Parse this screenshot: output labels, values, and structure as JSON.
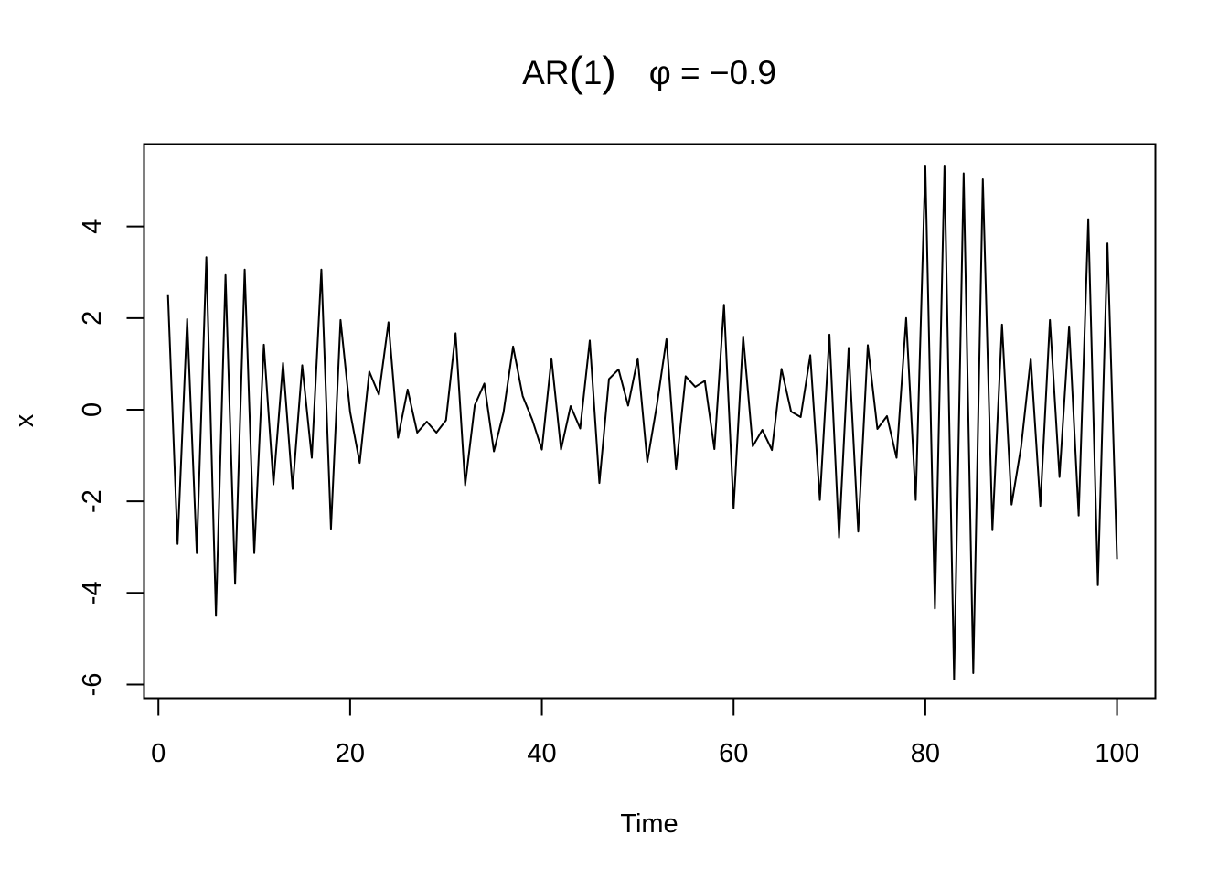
{
  "chart_data": {
    "type": "line",
    "title": "AR(1)   φ = −0.9",
    "title_parts": {
      "ar": "AR",
      "lparen": "(",
      "order": "1",
      "rparen": ")",
      "phi": "φ = −0.9"
    },
    "xlabel": "Time",
    "ylabel": "x",
    "xlim": [
      -1.5,
      104
    ],
    "ylim": [
      -6.3,
      5.8
    ],
    "x_ticks": [
      0,
      20,
      40,
      60,
      80,
      100
    ],
    "x_tick_labels": [
      "0",
      "20",
      "40",
      "60",
      "80",
      "100"
    ],
    "y_ticks": [
      -6,
      -4,
      -2,
      0,
      2,
      4
    ],
    "y_tick_labels": [
      "-6",
      "-4",
      "-2",
      "0",
      "2",
      "4"
    ],
    "grid": false,
    "legend": "none",
    "line_color": "#000000",
    "series": [
      {
        "values": [
          2.5,
          -2.93,
          1.98,
          -3.13,
          3.33,
          -4.5,
          2.94,
          -3.8,
          3.06,
          -3.13,
          1.42,
          -1.63,
          1.02,
          -1.73,
          0.97,
          -1.05,
          3.06,
          -2.6,
          1.96,
          -0.05,
          -1.16,
          0.83,
          0.33,
          1.91,
          -0.61,
          0.44,
          -0.5,
          -0.26,
          -0.5,
          -0.23,
          1.67,
          -1.65,
          0.1,
          0.57,
          -0.91,
          -0.06,
          1.38,
          0.3,
          -0.22,
          -0.87,
          1.12,
          -0.87,
          0.08,
          -0.41,
          1.51,
          -1.6,
          0.67,
          0.88,
          0.09,
          1.12,
          -1.14,
          0.1,
          1.54,
          -1.3,
          0.73,
          0.5,
          0.63,
          -0.86,
          2.29,
          -2.15,
          1.6,
          -0.8,
          -0.44,
          -0.88,
          0.89,
          -0.04,
          -0.16,
          1.19,
          -1.97,
          1.64,
          -2.79,
          1.35,
          -2.66,
          1.41,
          -0.42,
          -0.14,
          -1.05,
          2.0,
          -1.97,
          5.33,
          -4.34,
          5.33,
          -5.89,
          5.16,
          -5.75,
          5.03,
          -2.63,
          1.86,
          -2.07,
          -0.8,
          1.12,
          -2.1,
          1.96,
          -1.47,
          1.82,
          -2.31,
          4.16,
          -3.83,
          3.63,
          -3.26
        ]
      }
    ]
  }
}
